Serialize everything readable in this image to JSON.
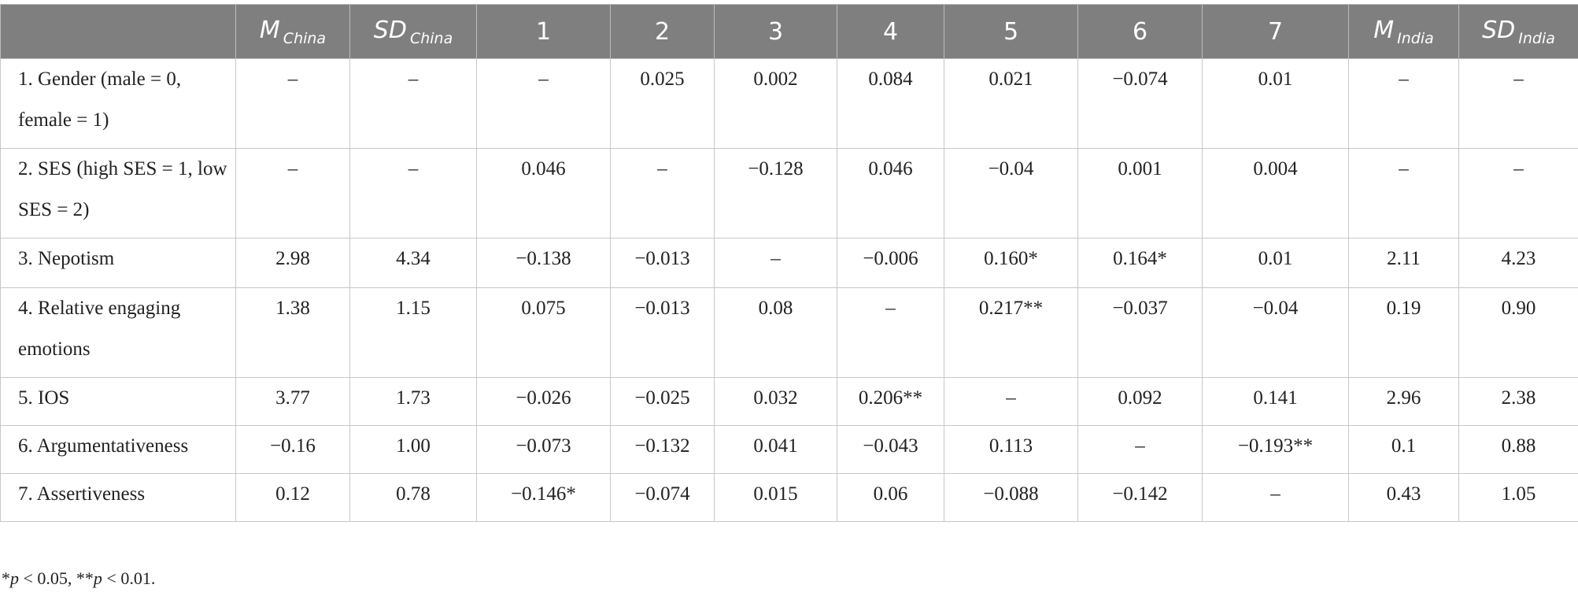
{
  "table": {
    "header": [
      {
        "main": ""
      },
      {
        "main": "M",
        "sub": "China"
      },
      {
        "main": "SD",
        "sub": "China"
      },
      {
        "main": "1"
      },
      {
        "main": "2"
      },
      {
        "main": "3"
      },
      {
        "main": "4"
      },
      {
        "main": "5"
      },
      {
        "main": "6"
      },
      {
        "main": "7"
      },
      {
        "main": "M",
        "sub": "India"
      },
      {
        "main": "SD",
        "sub": "India"
      }
    ],
    "rows": [
      [
        "1. Gender (male = 0, female = 1)",
        "–",
        "–",
        "–",
        "0.025",
        "0.002",
        "0.084",
        "0.021",
        "−0.074",
        "0.01",
        "–",
        "–"
      ],
      [
        "2. SES (high SES = 1, low SES = 2)",
        "–",
        "–",
        "0.046",
        "–",
        "−0.128",
        "0.046",
        "−0.04",
        "0.001",
        "0.004",
        "–",
        "–"
      ],
      [
        "3. Nepotism",
        "2.98",
        "4.34",
        "−0.138",
        "−0.013",
        "–",
        "−0.006",
        "0.160*",
        "0.164*",
        "0.01",
        "2.11",
        "4.23"
      ],
      [
        "4. Relative engaging emotions",
        "1.38",
        "1.15",
        "0.075",
        "−0.013",
        "0.08",
        "–",
        "0.217**",
        "−0.037",
        "−0.04",
        "0.19",
        "0.90"
      ],
      [
        "5. IOS",
        "3.77",
        "1.73",
        "−0.026",
        "−0.025",
        "0.032",
        "0.206**",
        "–",
        "0.092",
        "0.141",
        "2.96",
        "2.38"
      ],
      [
        "6. Argumentativeness",
        "−0.16",
        "1.00",
        "−0.073",
        "−0.132",
        "0.041",
        "−0.043",
        "0.113",
        "–",
        "−0.193**",
        "0.1",
        "0.88"
      ],
      [
        "7. Assertiveness",
        "0.12",
        "0.78",
        "−0.146*",
        "−0.074",
        "0.015",
        "0.06",
        "−0.088",
        "−0.142",
        "–",
        "0.43",
        "1.05"
      ]
    ]
  },
  "footnote": [
    {
      "text": "*",
      "italic": false
    },
    {
      "text": "p",
      "italic": true
    },
    {
      "text": " < 0.05, **",
      "italic": false
    },
    {
      "text": "p",
      "italic": true
    },
    {
      "text": " < 0.01.",
      "italic": false
    }
  ]
}
